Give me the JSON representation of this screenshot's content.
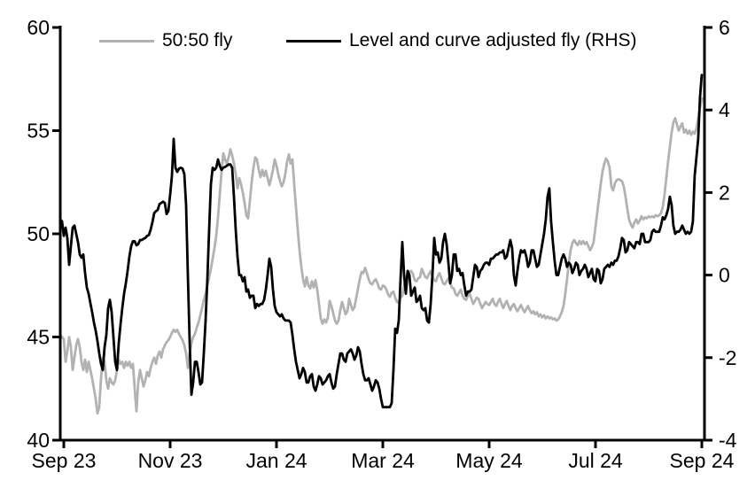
{
  "legend": {
    "series1_label": "50:50 fly",
    "series2_label": "Level and curve adjusted fly (RHS)"
  },
  "colors": {
    "series1": "#b2b2b2",
    "series2": "#000000",
    "axis": "#000000",
    "background": "#ffffff"
  },
  "chart_data": {
    "type": "line",
    "title": "",
    "xlabel": "",
    "ylabel_left": "",
    "ylabel_right": "",
    "grid": false,
    "legend_position": "top",
    "x_axis": {
      "unit": "months since Sep 2023",
      "tick_values": [
        0,
        2,
        4,
        6,
        8,
        10,
        12
      ],
      "tick_labels": [
        "Sep 23",
        "Nov 23",
        "Jan 24",
        "Mar 24",
        "May 24",
        "Jul 24",
        "Sep 24"
      ]
    },
    "y_axis_left": {
      "range": [
        40,
        60
      ],
      "tick_values": [
        60,
        55,
        50,
        45,
        40
      ],
      "tick_labels": [
        "60",
        "55",
        "50",
        "45",
        "40"
      ]
    },
    "y_axis_right": {
      "range": [
        -4,
        6
      ],
      "tick_values": [
        6,
        4,
        2,
        0,
        -2,
        -4
      ],
      "tick_labels": [
        "6",
        "4",
        "2",
        "0",
        "-2",
        "-4"
      ]
    },
    "sampling": {
      "t0": -0.06667,
      "dt": 0.03333
    },
    "series": [
      {
        "name": "50:50 fly",
        "axis": "left",
        "color": "#b2b2b2",
        "values": [
          45.1,
          45.0,
          44.9,
          43.8,
          44.3,
          45.0,
          44.5,
          43.4,
          44.0,
          44.6,
          44.9,
          44.5,
          43.8,
          43.4,
          43.9,
          43.3,
          43.8,
          43.4,
          43.0,
          42.5,
          42.0,
          41.3,
          41.6,
          43.0,
          44.0,
          43.8,
          42.9,
          42.5,
          43.0,
          42.8,
          42.7,
          42.9,
          43.4,
          43.9,
          43.7,
          43.8,
          43.5,
          43.8,
          43.6,
          43.8,
          43.5,
          43.7,
          42.5,
          41.4,
          42.8,
          43.4,
          43.0,
          42.6,
          42.9,
          43.3,
          43.1,
          43.5,
          43.8,
          44.0,
          43.7,
          44.1,
          44.3,
          44.0,
          44.4,
          44.6,
          44.75,
          44.85,
          45.0,
          45.2,
          45.35,
          45.25,
          45.35,
          45.15,
          45.0,
          44.85,
          44.6,
          44.2,
          43.5,
          44.2,
          44.7,
          45.0,
          45.15,
          45.45,
          45.7,
          46.05,
          46.4,
          46.8,
          47.1,
          47.5,
          47.9,
          48.3,
          48.8,
          49.3,
          49.9,
          50.8,
          51.9,
          53.0,
          53.9,
          53.6,
          53.4,
          53.7,
          54.1,
          53.8,
          53.4,
          52.9,
          52.2,
          52.7,
          52.4,
          52.0,
          51.5,
          50.9,
          50.75,
          51.6,
          52.5,
          53.2,
          53.7,
          53.6,
          53.1,
          52.75,
          53.1,
          52.8,
          53.05,
          52.7,
          52.35,
          52.7,
          53.1,
          53.6,
          53.3,
          52.9,
          52.55,
          52.3,
          52.5,
          52.9,
          53.5,
          53.85,
          53.4,
          53.6,
          52.4,
          51.3,
          50.2,
          49.2,
          48.4,
          47.8,
          47.45,
          47.9,
          47.5,
          47.35,
          47.7,
          47.4,
          47.75,
          47.3,
          46.6,
          45.9,
          45.65,
          45.85,
          45.7,
          45.95,
          46.75,
          46.5,
          46.15,
          45.8,
          45.65,
          45.8,
          46.3,
          46.7,
          46.4,
          46.1,
          46.25,
          46.85,
          46.55,
          46.3,
          46.45,
          46.9,
          47.35,
          47.8,
          48.15,
          48.1,
          48.35,
          48.1,
          47.8,
          47.6,
          47.55,
          47.7,
          47.8,
          47.6,
          47.35,
          47.3,
          47.5,
          47.45,
          47.3,
          47.05,
          46.95,
          47.15,
          47.2,
          46.9,
          46.7,
          46.65,
          46.9,
          47.0,
          47.5,
          47.9,
          48.05,
          48.15,
          48.2,
          48.05,
          47.75,
          47.7,
          47.85,
          47.9,
          48.3,
          48.1,
          47.9,
          47.85,
          48.05,
          48.2,
          47.9,
          47.75,
          47.7,
          47.95,
          48.1,
          47.85,
          47.6,
          47.55,
          47.7,
          47.85,
          47.6,
          47.4,
          47.35,
          47.1,
          47.0,
          47.15,
          47.3,
          47.0,
          46.85,
          46.8,
          47.0,
          47.1,
          46.85,
          46.6,
          46.75,
          46.9,
          46.85,
          46.6,
          46.4,
          46.55,
          46.7,
          46.6,
          46.55,
          46.7,
          46.85,
          46.6,
          46.5,
          46.7,
          46.85,
          46.6,
          46.4,
          46.6,
          46.75,
          46.5,
          46.3,
          46.5,
          46.6,
          46.4,
          46.25,
          46.4,
          46.55,
          46.35,
          46.2,
          46.35,
          46.5,
          46.3,
          46.15,
          46.25,
          46.1,
          46.2,
          46.0,
          46.1,
          45.95,
          46.05,
          45.9,
          46.0,
          45.9,
          45.95,
          45.85,
          45.9,
          45.8,
          45.85,
          46.0,
          46.2,
          46.5,
          47.1,
          47.8,
          48.6,
          49.2,
          49.55,
          49.7,
          49.55,
          49.45,
          49.65,
          49.5,
          49.65,
          49.5,
          49.6,
          49.4,
          49.2,
          49.35,
          49.6,
          50.3,
          51.0,
          51.7,
          52.4,
          53.0,
          53.4,
          53.65,
          53.5,
          53.2,
          52.3,
          52.1,
          52.45,
          52.6,
          52.65,
          52.6,
          52.55,
          52.3,
          51.8,
          51.2,
          50.7,
          50.45,
          50.3,
          50.55,
          50.7,
          50.5,
          50.65,
          50.85,
          50.7,
          50.8,
          50.75,
          50.85,
          50.8,
          50.85,
          50.8,
          50.9,
          50.85,
          50.9,
          51.0,
          51.3,
          51.9,
          52.7,
          53.5,
          54.2,
          54.9,
          55.4,
          55.6,
          55.3,
          55.0,
          55.2,
          55.35,
          54.9,
          55.05,
          54.85,
          55.0,
          54.8,
          54.95,
          54.85,
          55.1,
          55.6,
          56.1,
          56.55
        ]
      },
      {
        "name": "Level and curve adjusted fly (RHS)",
        "axis": "right",
        "color": "#000000",
        "values": [
          1.35,
          1.3,
          0.95,
          1.15,
          0.9,
          0.25,
          0.7,
          1.15,
          1.2,
          1.0,
          0.8,
          0.5,
          0.42,
          0.5,
          0.05,
          -0.3,
          -0.45,
          -0.68,
          -0.9,
          -1.15,
          -1.35,
          -1.6,
          -1.9,
          -2.15,
          -2.3,
          -1.75,
          -1.45,
          -0.8,
          -0.6,
          -0.9,
          -1.5,
          -2.1,
          -2.3,
          -1.65,
          -1.2,
          -0.8,
          -0.45,
          -0.2,
          0.1,
          0.45,
          0.7,
          0.82,
          0.82,
          0.72,
          0.75,
          0.85,
          0.85,
          0.88,
          0.9,
          0.95,
          0.97,
          1.1,
          1.28,
          1.5,
          1.55,
          1.58,
          1.72,
          1.75,
          1.78,
          1.75,
          1.48,
          1.55,
          1.95,
          2.4,
          3.3,
          2.6,
          2.5,
          2.58,
          2.6,
          2.58,
          2.45,
          1.7,
          0.0,
          -1.6,
          -2.9,
          -2.6,
          -2.1,
          -2.1,
          -2.35,
          -2.65,
          -2.6,
          -1.9,
          -1.1,
          -0.1,
          1.1,
          2.2,
          2.6,
          2.55,
          2.6,
          2.8,
          2.65,
          2.55,
          2.6,
          2.62,
          2.65,
          2.68,
          2.68,
          2.6,
          1.9,
          1.1,
          0.45,
          0.0,
          0.0,
          -0.15,
          -0.05,
          -0.4,
          -0.35,
          -0.55,
          -0.5,
          -0.5,
          -0.8,
          -0.7,
          -0.75,
          -0.7,
          -0.7,
          -0.6,
          -0.35,
          0.0,
          0.4,
          0.2,
          -0.35,
          -0.75,
          -0.9,
          -0.95,
          -1.0,
          -0.95,
          -1.05,
          -1.1,
          -1.1,
          -1.1,
          -1.15,
          -1.45,
          -1.8,
          -2.1,
          -2.3,
          -2.5,
          -2.4,
          -2.25,
          -2.35,
          -2.6,
          -2.6,
          -2.45,
          -2.4,
          -2.7,
          -2.8,
          -2.65,
          -2.45,
          -2.5,
          -2.65,
          -2.6,
          -2.55,
          -2.45,
          -2.4,
          -2.6,
          -2.75,
          -2.7,
          -2.4,
          -2.15,
          -1.9,
          -1.9,
          -2.05,
          -2.1,
          -1.9,
          -1.85,
          -1.8,
          -1.9,
          -2.05,
          -1.95,
          -1.75,
          -1.85,
          -2.15,
          -2.4,
          -2.55,
          -2.55,
          -2.5,
          -2.65,
          -2.8,
          -2.7,
          -2.55,
          -2.6,
          -2.75,
          -3.0,
          -3.2,
          -3.2,
          -3.2,
          -3.2,
          -3.2,
          -3.1,
          -2.3,
          -1.3,
          -1.4,
          -1.1,
          -0.1,
          0.8,
          0.0,
          -0.45,
          0.1,
          0.0,
          -0.5,
          -0.4,
          -0.3,
          -0.65,
          -0.6,
          -0.5,
          -0.8,
          -0.85,
          -0.8,
          -1.1,
          -1.15,
          -0.7,
          0.0,
          0.9,
          0.5,
          0.55,
          0.3,
          0.4,
          0.8,
          1.0,
          0.75,
          0.3,
          -0.2,
          0.0,
          0.5,
          0.5,
          0.1,
          0.15,
          0.0,
          0.05,
          -0.25,
          -0.5,
          -0.4,
          -0.4,
          -0.35,
          -0.05,
          0.25,
          0.2,
          -0.05,
          0.1,
          0.15,
          0.25,
          0.3,
          0.3,
          0.25,
          0.4,
          0.4,
          0.45,
          0.5,
          0.5,
          0.55,
          0.55,
          0.6,
          0.4,
          0.45,
          0.65,
          0.85,
          0.65,
          0.0,
          -0.25,
          0.1,
          0.4,
          0.6,
          0.55,
          0.6,
          0.45,
          0.2,
          0.3,
          0.6,
          0.6,
          0.4,
          0.2,
          0.25,
          0.5,
          0.75,
          1.0,
          1.35,
          1.9,
          2.1,
          1.3,
          0.8,
          0.35,
          0.0,
          0.0,
          0.2,
          0.4,
          0.5,
          0.4,
          0.2,
          0.3,
          0.25,
          0.05,
          0.15,
          0.3,
          0.25,
          0.0,
          0.1,
          0.15,
          0.25,
          0.15,
          -0.05,
          0.05,
          0.15,
          -0.1,
          -0.15,
          0.15,
          0.1,
          -0.2,
          -0.1,
          0.15,
          0.2,
          0.25,
          0.2,
          0.3,
          0.25,
          0.35,
          0.35,
          0.45,
          0.65,
          0.9,
          0.85,
          0.55,
          0.6,
          0.8,
          0.75,
          0.7,
          0.65,
          0.8,
          0.8,
          0.75,
          1.0,
          1.0,
          0.8,
          0.8,
          0.8,
          0.85,
          1.05,
          1.1,
          1.05,
          1.05,
          1.05,
          1.2,
          1.4,
          1.35,
          1.45,
          1.6,
          1.9,
          1.7,
          1.2,
          1.0,
          1.05,
          1.05,
          1.1,
          1.2,
          1.1,
          1.0,
          1.05,
          1.0,
          1.05,
          1.3,
          2.4,
          2.85,
          3.3,
          4.3,
          4.85
        ]
      }
    ]
  }
}
